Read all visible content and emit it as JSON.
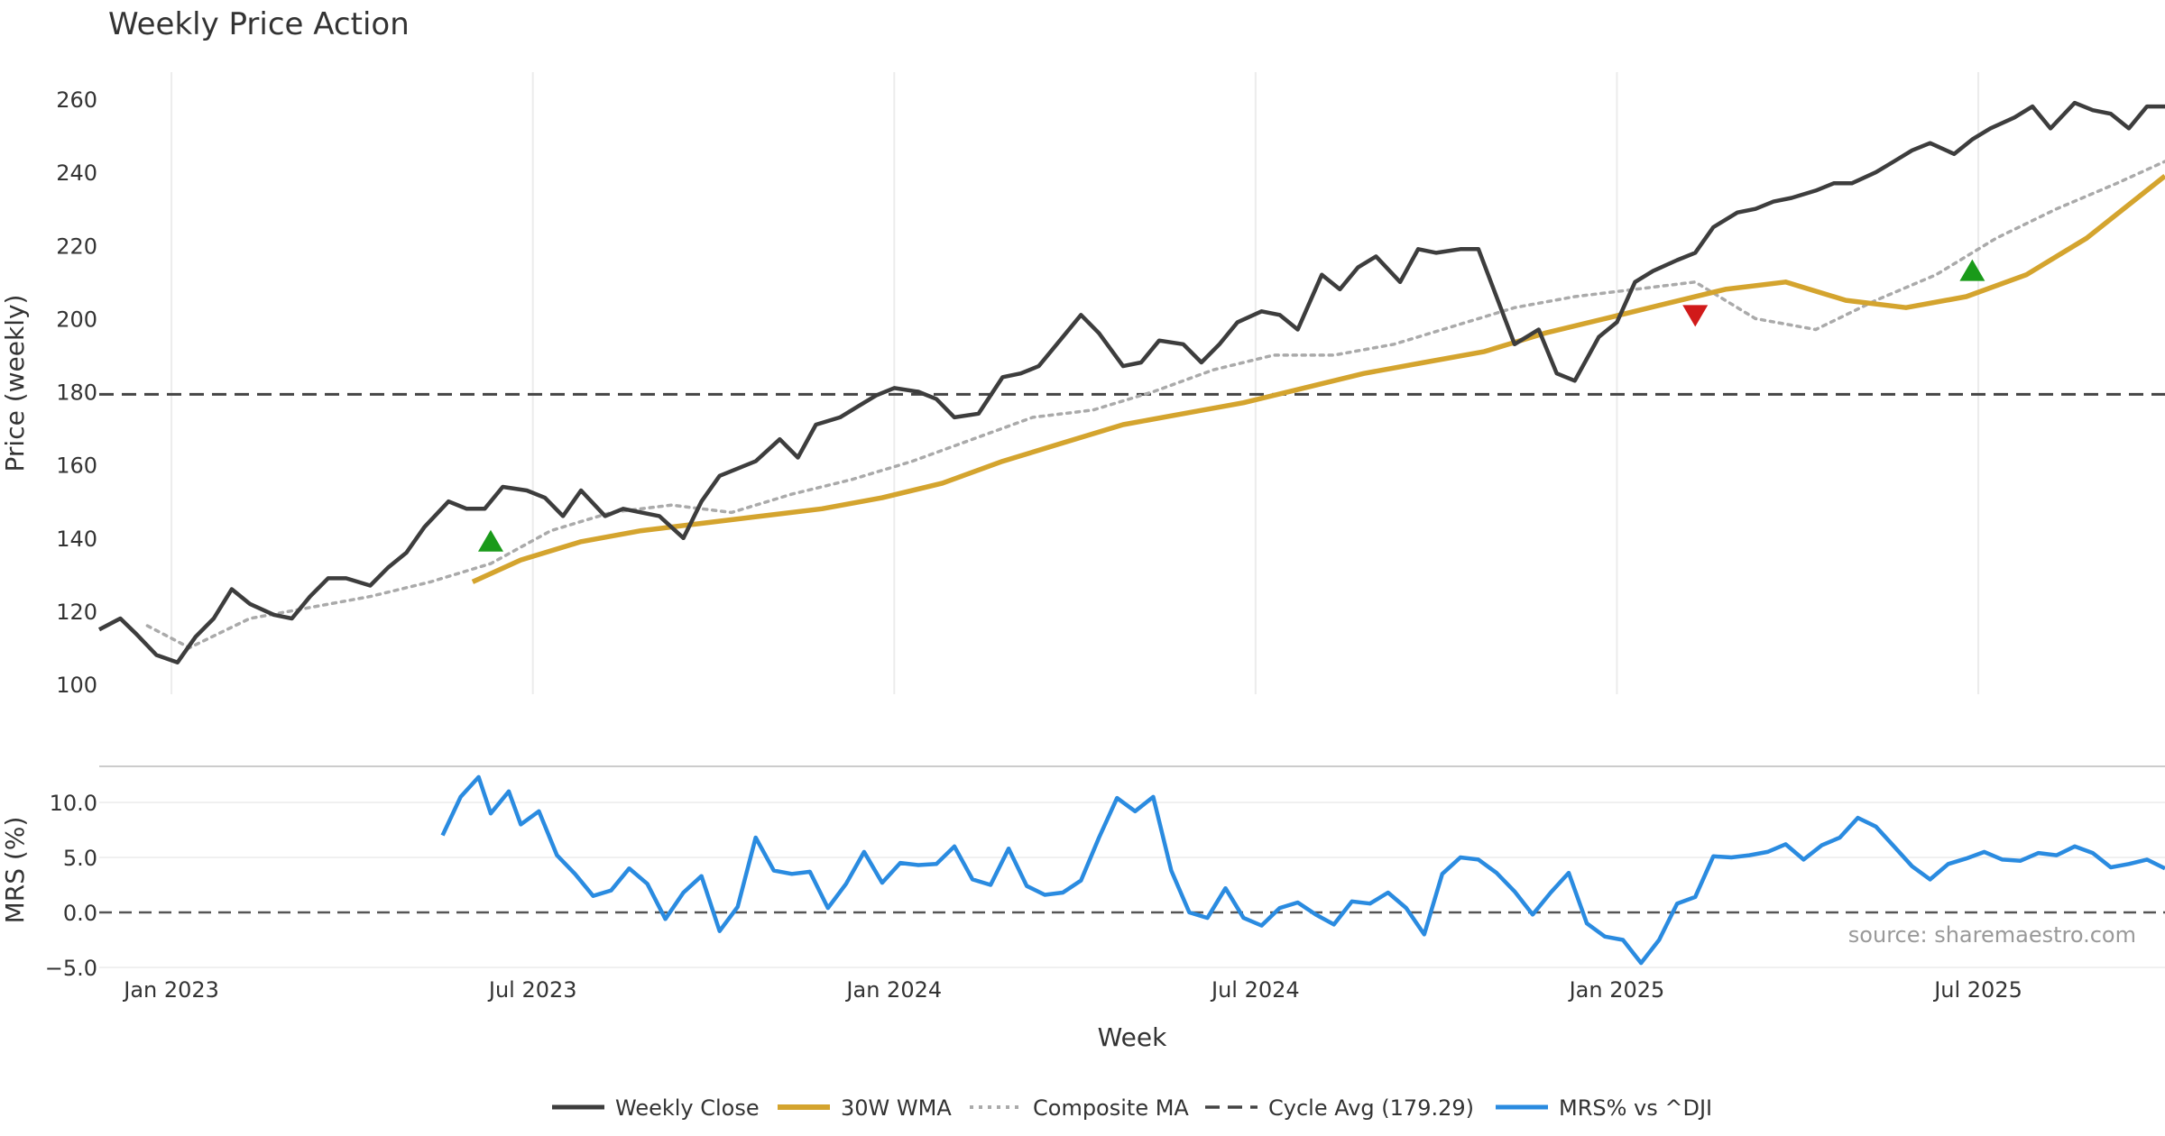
{
  "chart_data": [
    {
      "type": "line",
      "title": "Weekly Price Action",
      "ylabel": "Price (weekly)",
      "ylim": [
        97,
        270
      ],
      "yticks": [
        "100",
        "120",
        "140",
        "160",
        "180",
        "200",
        "220",
        "240",
        "260"
      ],
      "x_range_months": [
        0,
        34.3
      ],
      "cycle_avg": 179.29,
      "series": [
        {
          "name": "Weekly Close",
          "color": "#3d3d3d",
          "x": [
            0,
            0.35,
            0.6,
            0.95,
            1.3,
            1.6,
            1.9,
            2.2,
            2.5,
            2.9,
            3.2,
            3.5,
            3.8,
            4.1,
            4.5,
            4.8,
            5.1,
            5.4,
            5.8,
            6.1,
            6.4,
            6.7,
            7.1,
            7.4,
            7.7,
            8.0,
            8.4,
            8.7,
            9.0,
            9.3,
            9.7,
            10.0,
            10.3,
            10.6,
            10.9,
            11.3,
            11.6,
            11.9,
            12.3,
            12.6,
            12.9,
            13.2,
            13.6,
            13.9,
            14.2,
            14.6,
            15.0,
            15.3,
            15.6,
            16.0,
            16.3,
            16.6,
            17.0,
            17.3,
            17.6,
            18.0,
            18.3,
            18.6,
            18.9,
            19.3,
            19.6,
            19.9,
            20.3,
            20.6,
            20.9,
            21.2,
            21.6,
            21.9,
            22.2,
            22.6,
            22.9,
            23.2,
            23.5,
            23.9,
            24.2,
            24.5,
            24.9,
            25.2,
            25.5,
            25.8,
            26.2,
            26.5,
            26.8,
            27.2,
            27.5,
            27.8,
            28.1,
            28.5,
            28.8,
            29.1,
            29.5,
            29.8,
            30.1,
            30.4,
            30.8,
            31.1,
            31.4,
            31.8,
            32.1,
            32.4,
            32.8,
            33.1,
            33.4,
            33.7,
            34.0,
            34.3
          ],
          "y": [
            115,
            118,
            114,
            108,
            106,
            113,
            118,
            126,
            122,
            119,
            118,
            124,
            129,
            129,
            127,
            132,
            136,
            143,
            150,
            148,
            148,
            154,
            153,
            151,
            146,
            153,
            146,
            148,
            147,
            146,
            140,
            150,
            157,
            159,
            161,
            167,
            162,
            171,
            173,
            176,
            179,
            181,
            180,
            178,
            173,
            174,
            184,
            185,
            187,
            195,
            201,
            196,
            187,
            188,
            194,
            193,
            188,
            193,
            199,
            202,
            201,
            197,
            212,
            208,
            214,
            217,
            210,
            219,
            218,
            219,
            219,
            206,
            193,
            197,
            185,
            183,
            195,
            199,
            210,
            213,
            216,
            218,
            225,
            229,
            230,
            232,
            233,
            235,
            237,
            237,
            240,
            243,
            246,
            248,
            245,
            249,
            252,
            255,
            258,
            252,
            259,
            257,
            256,
            252,
            258,
            258
          ]
        },
        {
          "name": "30W WMA",
          "color": "#d4a42e",
          "x": [
            6.2,
            7,
            8,
            9,
            10,
            11,
            12,
            13,
            14,
            15,
            16,
            17,
            18,
            19,
            20,
            21,
            22,
            23,
            24,
            25,
            26,
            27,
            28,
            29,
            30,
            31,
            32,
            33,
            34.3
          ],
          "y": [
            128,
            134,
            139,
            142,
            144,
            146,
            148,
            151,
            155,
            161,
            166,
            171,
            174,
            177,
            181,
            185,
            188,
            191,
            196,
            200,
            204,
            208,
            210,
            205,
            203,
            206,
            212,
            222,
            239
          ]
        },
        {
          "name": "Composite MA",
          "color": "#aaaaaa",
          "x": [
            0.8,
            1.5,
            2.5,
            3.5,
            4.5,
            5.5,
            6.5,
            7.5,
            8.5,
            9.5,
            10.5,
            11.5,
            12.5,
            13.5,
            14.5,
            15.5,
            16.5,
            17.5,
            18.5,
            19.5,
            20.5,
            21.5,
            22.5,
            23.5,
            24.5,
            25.5,
            26.5,
            27.5,
            28.5,
            29.5,
            30.5,
            31.5,
            32.5,
            33.5,
            34.3
          ],
          "y": [
            116,
            110,
            118,
            121,
            124,
            128,
            133,
            142,
            147,
            149,
            147,
            152,
            156,
            161,
            167,
            173,
            175,
            180,
            186,
            190,
            190,
            193,
            198,
            203,
            206,
            208,
            210,
            200,
            197,
            205,
            212,
            222,
            230,
            237,
            243
          ]
        },
        {
          "name": "Cycle Avg (179.29)",
          "color": "#444444",
          "style": "dashed",
          "value": 179.29
        }
      ],
      "markers": [
        {
          "type": "buy",
          "x": 6.5,
          "y": 139,
          "color": "#1a9a1a"
        },
        {
          "type": "sell",
          "x": 26.5,
          "y": 201,
          "color": "#d11a1a"
        },
        {
          "type": "buy",
          "x": 31.1,
          "y": 213,
          "color": "#1a9a1a"
        }
      ]
    },
    {
      "type": "line",
      "ylabel": "MRS (%)",
      "ylim": [
        -5,
        14
      ],
      "yticks": [
        "10.0",
        "5.0",
        "0.0",
        "−5.0"
      ],
      "xlabel": "Week",
      "xticks": [
        {
          "label": "Jan 2023",
          "month": 1.2
        },
        {
          "label": "Jul 2023",
          "month": 7.2
        },
        {
          "label": "Jan 2024",
          "month": 13.2
        },
        {
          "label": "Jul 2024",
          "month": 19.2
        },
        {
          "label": "Jan 2025",
          "month": 25.2
        },
        {
          "label": "Jul 2025",
          "month": 31.2
        }
      ],
      "series": [
        {
          "name": "MRS% vs ^DJI",
          "color": "#2a8be0",
          "x": [
            5.7,
            6.0,
            6.3,
            6.5,
            6.8,
            7.0,
            7.3,
            7.6,
            7.9,
            8.2,
            8.5,
            8.8,
            9.1,
            9.4,
            9.7,
            10.0,
            10.3,
            10.6,
            10.9,
            11.2,
            11.5,
            11.8,
            12.1,
            12.4,
            12.7,
            13.0,
            13.3,
            13.6,
            13.9,
            14.2,
            14.5,
            14.8,
            15.1,
            15.4,
            15.7,
            16.0,
            16.3,
            16.6,
            16.9,
            17.2,
            17.5,
            17.8,
            18.1,
            18.4,
            18.7,
            19.0,
            19.3,
            19.6,
            19.9,
            20.2,
            20.5,
            20.8,
            21.1,
            21.4,
            21.7,
            22.0,
            22.3,
            22.6,
            22.9,
            23.2,
            23.5,
            23.8,
            24.1,
            24.4,
            24.7,
            25.0,
            25.3,
            25.6,
            25.9,
            26.2,
            26.5,
            26.8,
            27.1,
            27.4,
            27.7,
            28.0,
            28.3,
            28.6,
            28.9,
            29.2,
            29.5,
            29.8,
            30.1,
            30.4,
            30.7,
            31.0,
            31.3,
            31.6,
            31.9,
            32.2,
            32.5,
            32.8,
            33.1,
            33.4,
            33.7,
            34.0,
            34.3
          ],
          "y": [
            7,
            10.5,
            12.3,
            9,
            11,
            8,
            9.2,
            5.2,
            3.5,
            1.5,
            2,
            4,
            2.6,
            -0.6,
            1.8,
            3.3,
            -1.7,
            0.5,
            6.8,
            3.8,
            3.5,
            3.7,
            0.4,
            2.6,
            5.5,
            2.7,
            4.5,
            4.3,
            4.4,
            6,
            3,
            2.5,
            5.8,
            2.4,
            1.6,
            1.8,
            2.9,
            6.8,
            10.4,
            9.2,
            10.5,
            3.8,
            0,
            -0.5,
            2.2,
            -0.5,
            -1.2,
            0.4,
            0.9,
            -0.2,
            -1.1,
            1,
            0.8,
            1.8,
            0.4,
            -2,
            3.5,
            5,
            4.8,
            3.6,
            1.9,
            -0.2,
            1.8,
            3.6,
            -1,
            -2.2,
            -2.5,
            -4.6,
            -2.5,
            0.8,
            1.4,
            5.1,
            5,
            5.2,
            5.5,
            6.2,
            4.8,
            6.1,
            6.8,
            8.6,
            7.8,
            6,
            4.2,
            3,
            4.4,
            4.9,
            5.5,
            4.8,
            4.7,
            5.4,
            5.2,
            6,
            5.4,
            4.1,
            4.4,
            4.8,
            4
          ]
        }
      ],
      "annotation": "source: sharemaestro.com",
      "legend_position": "bottom-center"
    }
  ]
}
